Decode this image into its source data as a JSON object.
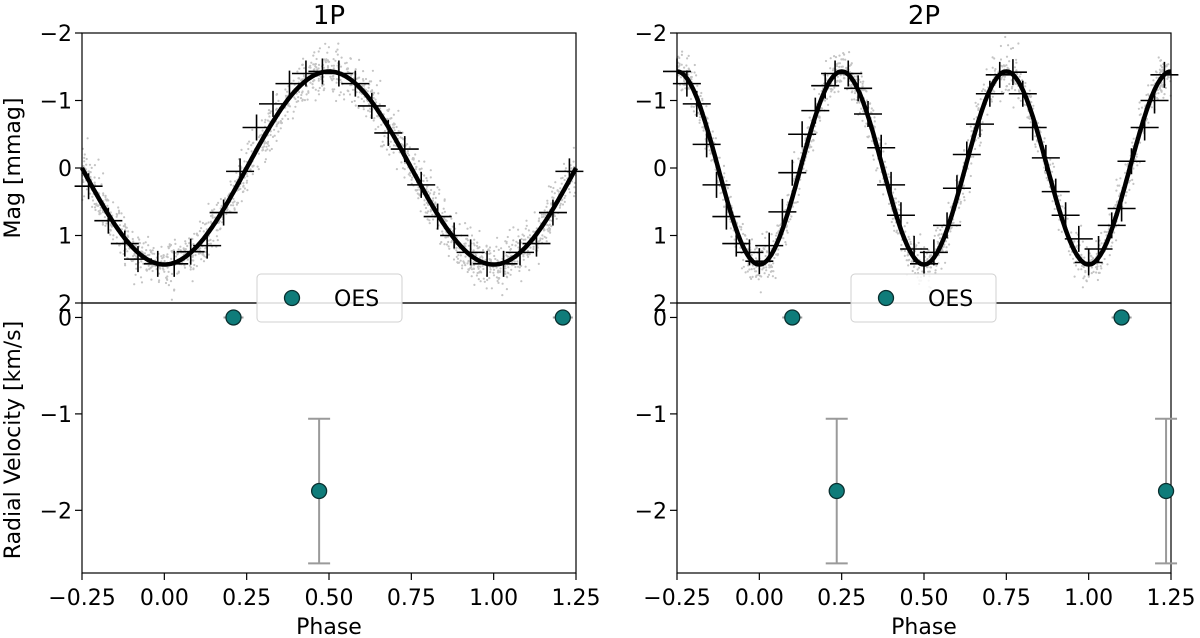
{
  "figure": {
    "shared_ylabel_top": "Mag [mmag]",
    "shared_ylabel_bottom": "Radial Velocity [km/s]"
  },
  "colors": {
    "scatter": "#c4c4c4",
    "model_line": "#000000",
    "rv_marker": "#0f7c7a",
    "rv_marker_edge": "#0a2f2f",
    "errorbar": "#9a9a9a",
    "legend_border": "#d0d0d0"
  },
  "chart_data": [
    {
      "type": "scatter",
      "panel": "1P",
      "title": "1P",
      "top": {
        "ylabel": "Mag [mmag]",
        "ylim": [
          2,
          -2
        ],
        "yticks": [
          -2,
          -1,
          0,
          1,
          2
        ],
        "yticklabels": [
          "−2",
          "−1",
          "0",
          "1",
          "2"
        ],
        "cycles_per_phase": 1,
        "amplitude": 1.43,
        "minimum_phase": 0.0,
        "binned_points": [
          [
            -0.23,
            0.27
          ],
          [
            -0.17,
            0.78
          ],
          [
            -0.12,
            1.12
          ],
          [
            -0.08,
            1.35
          ],
          [
            -0.02,
            1.42
          ],
          [
            0.03,
            1.42
          ],
          [
            0.08,
            1.24
          ],
          [
            0.13,
            1.15
          ],
          [
            0.18,
            0.66
          ],
          [
            0.23,
            0.05
          ],
          [
            0.28,
            -0.6
          ],
          [
            0.33,
            -0.95
          ],
          [
            0.38,
            -1.25
          ],
          [
            0.43,
            -1.4
          ],
          [
            0.48,
            -1.43
          ],
          [
            0.53,
            -1.4
          ],
          [
            0.58,
            -1.25
          ],
          [
            0.63,
            -0.92
          ],
          [
            0.68,
            -0.52
          ],
          [
            0.73,
            -0.28
          ],
          [
            0.78,
            0.25
          ],
          [
            0.83,
            0.72
          ],
          [
            0.88,
            1.0
          ],
          [
            0.93,
            1.25
          ],
          [
            0.98,
            1.42
          ],
          [
            1.03,
            1.42
          ],
          [
            1.08,
            1.25
          ],
          [
            1.13,
            1.12
          ],
          [
            1.18,
            0.66
          ],
          [
            1.23,
            0.05
          ]
        ]
      },
      "bottom": {
        "ylabel": "Radial Velocity [km/s]",
        "xlabel": "Phase",
        "xlim": [
          -0.25,
          1.25
        ],
        "xticks": [
          -0.25,
          0.0,
          0.25,
          0.5,
          0.75,
          1.0,
          1.25
        ],
        "xticklabels": [
          "−0.25",
          "0.00",
          "0.25",
          "0.50",
          "0.75",
          "1.00",
          "1.25"
        ],
        "ylim": [
          -2.65,
          0.15
        ],
        "yticks": [
          0,
          -1,
          -2
        ],
        "yticklabels": [
          "0",
          "−1",
          "−2"
        ],
        "legend": "OES",
        "points": [
          {
            "x": 0.21,
            "y": 0.0,
            "err": 0.0
          },
          {
            "x": 0.47,
            "y": -1.8,
            "err": 0.75
          },
          {
            "x": 1.21,
            "y": 0.0,
            "err": 0.0
          }
        ]
      }
    },
    {
      "type": "scatter",
      "panel": "2P",
      "title": "2P",
      "top": {
        "ylabel": "",
        "ylim": [
          2,
          -2
        ],
        "yticks": [
          -2,
          -1,
          0,
          1,
          2
        ],
        "yticklabels": [
          "−2",
          "−1",
          "0",
          "1",
          "2"
        ],
        "cycles_per_phase": 2,
        "amplitude": 1.43,
        "minimum_phase": 0.0,
        "binned_points": [
          [
            -0.25,
            -1.43
          ],
          [
            -0.22,
            -1.25
          ],
          [
            -0.19,
            -0.95
          ],
          [
            -0.16,
            -0.35
          ],
          [
            -0.13,
            0.25
          ],
          [
            -0.1,
            0.72
          ],
          [
            -0.07,
            1.12
          ],
          [
            -0.03,
            1.25
          ],
          [
            0.0,
            1.38
          ],
          [
            0.03,
            1.15
          ],
          [
            0.07,
            0.65
          ],
          [
            0.1,
            0.07
          ],
          [
            0.13,
            -0.5
          ],
          [
            0.17,
            -0.85
          ],
          [
            0.2,
            -1.22
          ],
          [
            0.23,
            -1.4
          ],
          [
            0.27,
            -1.4
          ],
          [
            0.3,
            -1.18
          ],
          [
            0.33,
            -0.8
          ],
          [
            0.37,
            -0.3
          ],
          [
            0.4,
            0.25
          ],
          [
            0.43,
            0.7
          ],
          [
            0.47,
            1.2
          ],
          [
            0.5,
            1.42
          ],
          [
            0.53,
            1.25
          ],
          [
            0.57,
            0.85
          ],
          [
            0.6,
            0.3
          ],
          [
            0.63,
            -0.2
          ],
          [
            0.67,
            -0.65
          ],
          [
            0.7,
            -1.1
          ],
          [
            0.73,
            -1.38
          ],
          [
            0.77,
            -1.42
          ],
          [
            0.8,
            -1.1
          ],
          [
            0.83,
            -0.6
          ],
          [
            0.87,
            -0.15
          ],
          [
            0.9,
            0.35
          ],
          [
            0.93,
            0.7
          ],
          [
            0.97,
            1.05
          ],
          [
            1.0,
            1.4
          ],
          [
            1.03,
            1.2
          ],
          [
            1.07,
            0.85
          ],
          [
            1.1,
            0.6
          ],
          [
            1.13,
            -0.1
          ],
          [
            1.17,
            -0.6
          ],
          [
            1.2,
            -1.0
          ],
          [
            1.23,
            -1.38
          ]
        ]
      },
      "bottom": {
        "ylabel": "",
        "xlabel": "Phase",
        "xlim": [
          -0.25,
          1.25
        ],
        "xticks": [
          -0.25,
          0.0,
          0.25,
          0.5,
          0.75,
          1.0,
          1.25
        ],
        "xticklabels": [
          "−0.25",
          "0.00",
          "0.25",
          "0.50",
          "0.75",
          "1.00",
          "1.25"
        ],
        "ylim": [
          -2.65,
          0.15
        ],
        "yticks": [
          0,
          -1,
          -2
        ],
        "yticklabels": [
          "0",
          "−1",
          "−2"
        ],
        "legend": "OES",
        "points": [
          {
            "x": 0.1,
            "y": 0.0,
            "err": 0.0
          },
          {
            "x": 0.235,
            "y": -1.8,
            "err": 0.75
          },
          {
            "x": 1.1,
            "y": 0.0,
            "err": 0.0
          },
          {
            "x": 1.235,
            "y": -1.8,
            "err": 0.75
          }
        ]
      }
    }
  ]
}
